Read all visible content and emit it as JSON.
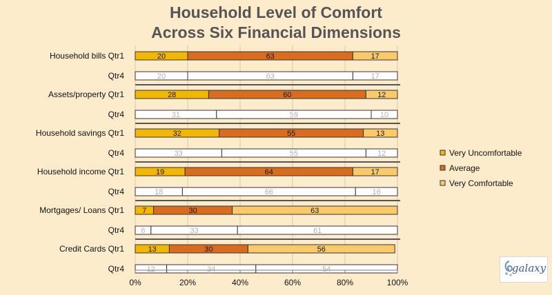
{
  "chart_data": {
    "type": "bar",
    "orientation": "horizontal",
    "stacked": "percent",
    "title": [
      "Household Level of Comfort",
      "Across Six Financial Dimensions"
    ],
    "xlim": [
      0,
      100
    ],
    "x_ticks": [
      "0%",
      "20%",
      "40%",
      "60%",
      "80%",
      "100%"
    ],
    "legend_position": "right",
    "colors": {
      "Very Uncomfortable": "#f2b705",
      "Average": "#d96c1e",
      "Very Comfortable": "#f9c96a",
      "Qtr4": "#ffffff"
    },
    "series": [
      {
        "name": "Very Uncomfortable"
      },
      {
        "name": "Average"
      },
      {
        "name": "Very Comfortable"
      }
    ],
    "groups": [
      {
        "category": "Household bills",
        "rows": [
          {
            "label": "Qtr1",
            "values": [
              20,
              63,
              17
            ]
          },
          {
            "label": "Qtr4",
            "values": [
              20,
              63,
              17
            ]
          }
        ]
      },
      {
        "category": "Assets/property",
        "rows": [
          {
            "label": "Qtr1",
            "values": [
              28,
              60,
              12
            ]
          },
          {
            "label": "Qtr4",
            "values": [
              31,
              59,
              10
            ]
          }
        ]
      },
      {
        "category": "Household savings",
        "rows": [
          {
            "label": "Qtr1",
            "values": [
              32,
              55,
              13
            ]
          },
          {
            "label": "Qtr4",
            "values": [
              33,
              55,
              12
            ]
          }
        ]
      },
      {
        "category": "Household income",
        "rows": [
          {
            "label": "Qtr1",
            "values": [
              19,
              64,
              17
            ]
          },
          {
            "label": "Qtr4",
            "values": [
              18,
              66,
              16
            ]
          }
        ]
      },
      {
        "category": "Mortgages/ Loans",
        "rows": [
          {
            "label": "Qtr1",
            "values": [
              7,
              30,
              63
            ]
          },
          {
            "label": "Qtr4",
            "values": [
              6,
              33,
              61
            ]
          }
        ]
      },
      {
        "category": "Credit Cards",
        "rows": [
          {
            "label": "Qtr1",
            "values": [
              13,
              30,
              56
            ]
          },
          {
            "label": "Qtr4",
            "values": [
              12,
              34,
              54
            ]
          }
        ]
      }
    ]
  },
  "logo": {
    "text": "galaxy"
  }
}
